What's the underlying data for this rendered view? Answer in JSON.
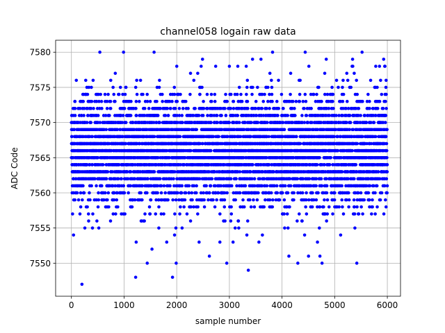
{
  "chart_data": {
    "type": "scatter",
    "title": "channel058 logain raw data",
    "xlabel": "sample number",
    "ylabel": "ADC Code",
    "xlim": [
      -300,
      6250
    ],
    "ylim": [
      7545.3,
      7581.7
    ],
    "xticks": [
      0,
      1000,
      2000,
      3000,
      4000,
      5000,
      6000
    ],
    "yticks": [
      7550,
      7555,
      7560,
      7565,
      7570,
      7575,
      7580
    ],
    "grid": true,
    "marker_color": "#0000ff",
    "n_samples": 6000,
    "x_start": 0,
    "x_step": 1,
    "bulk_band": [
      7560,
      7572
    ],
    "outlier_points": {
      "x": [
        200,
        540,
        990,
        1570,
        4440,
        5520,
        3820,
        5930,
        2490,
        3440,
        3600,
        2740,
        3320,
        3160,
        3000,
        4510,
        4840,
        5230,
        5780,
        5950,
        1220,
        1440,
        1920,
        2950,
        3360,
        4130,
        4300,
        4760,
        5420,
        2620,
        3070,
        4720,
        1530,
        1810,
        2820,
        1990,
        1230,
        40
      ],
      "y": [
        7547,
        7580,
        7580,
        7580,
        7580,
        7580,
        7580,
        7579,
        7579,
        7579,
        7579,
        7578,
        7578,
        7578,
        7578,
        7578,
        7579,
        7577,
        7578,
        7578,
        7548,
        7550,
        7548,
        7550,
        7549,
        7551,
        7550,
        7550,
        7550,
        7551,
        7553,
        7551,
        7552,
        7553,
        7553,
        7550,
        7553,
        7554
      ]
    }
  }
}
